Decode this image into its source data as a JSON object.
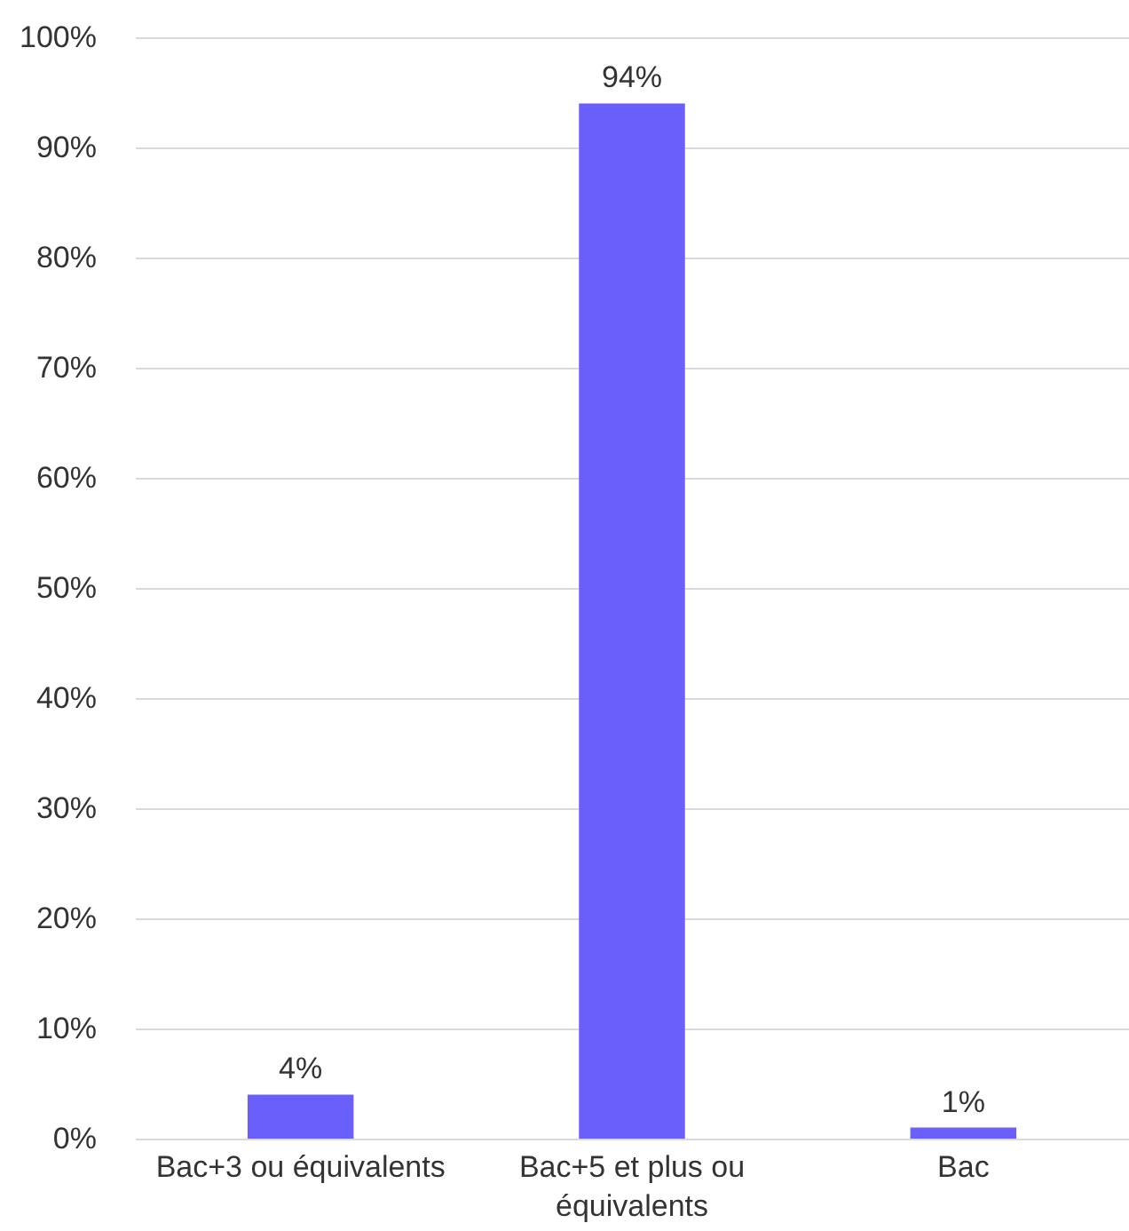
{
  "chart_data": {
    "type": "bar",
    "categories": [
      "Bac+3 ou équivalents",
      "Bac+5 et plus ou équivalents",
      "Bac"
    ],
    "values": [
      4,
      94,
      1
    ],
    "color": "#6b5ffb",
    "value_labels": [
      "4%",
      "94%",
      "1%"
    ],
    "ylim": [
      0,
      100
    ],
    "yticks": [
      {
        "value": 0,
        "label": "0%"
      },
      {
        "value": 10,
        "label": "10%"
      },
      {
        "value": 20,
        "label": "20%"
      },
      {
        "value": 30,
        "label": "30%"
      },
      {
        "value": 40,
        "label": "40%"
      },
      {
        "value": 50,
        "label": "50%"
      },
      {
        "value": 60,
        "label": "60%"
      },
      {
        "value": 70,
        "label": "70%"
      },
      {
        "value": 80,
        "label": "80%"
      },
      {
        "value": 90,
        "label": "90%"
      },
      {
        "value": 100,
        "label": "100%"
      }
    ],
    "grid": "y"
  }
}
